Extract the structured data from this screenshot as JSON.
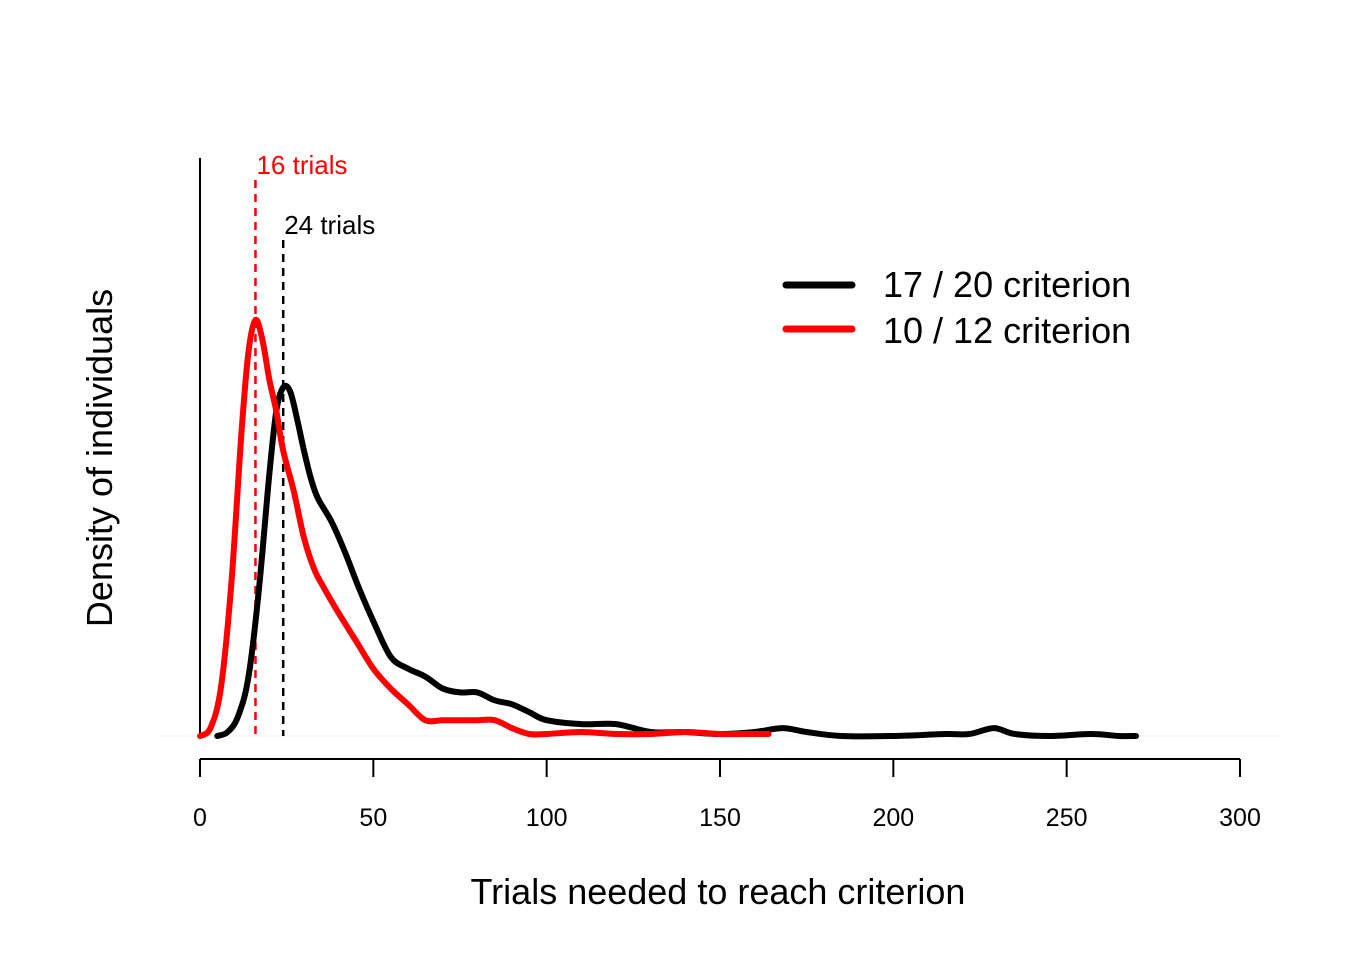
{
  "chart_data": {
    "type": "line",
    "title": "",
    "xlabel": "Trials needed to reach criterion",
    "ylabel": "Density of individuals",
    "xlim": [
      0,
      300
    ],
    "ylim": [
      0,
      1.05
    ],
    "xticks": [
      0,
      50,
      100,
      150,
      200,
      250,
      300
    ],
    "grid": false,
    "legend_position": "top-right",
    "series": [
      {
        "name": "17 / 20 criterion",
        "color": "#000000",
        "x": [
          5,
          8,
          11,
          14,
          17,
          20,
          22,
          24,
          26,
          28,
          30,
          32,
          34,
          38,
          42,
          46,
          50,
          55,
          60,
          65,
          70,
          75,
          80,
          85,
          90,
          95,
          100,
          110,
          120,
          130,
          140,
          150,
          160,
          168,
          175,
          185,
          200,
          215,
          222,
          229,
          235,
          245,
          257,
          265,
          270
        ],
        "values": [
          0.0,
          0.01,
          0.05,
          0.15,
          0.37,
          0.66,
          0.82,
          0.88,
          0.87,
          0.8,
          0.72,
          0.65,
          0.6,
          0.54,
          0.46,
          0.37,
          0.29,
          0.2,
          0.17,
          0.15,
          0.12,
          0.11,
          0.11,
          0.09,
          0.08,
          0.06,
          0.04,
          0.03,
          0.03,
          0.01,
          0.01,
          0.005,
          0.01,
          0.02,
          0.01,
          0.0,
          0.0,
          0.005,
          0.005,
          0.02,
          0.005,
          0.0,
          0.005,
          0.0,
          0.0
        ]
      },
      {
        "name": "10 / 12 criterion",
        "color": "#ff0000",
        "x": [
          0,
          3,
          6,
          9,
          12,
          14,
          16,
          18,
          20,
          22,
          24,
          27,
          30,
          33,
          36,
          40,
          45,
          50,
          55,
          60,
          65,
          70,
          75,
          80,
          85,
          90,
          95,
          100,
          110,
          120,
          130,
          140,
          150,
          157,
          164
        ],
        "values": [
          0.0,
          0.02,
          0.12,
          0.38,
          0.77,
          0.97,
          1.05,
          1.0,
          0.9,
          0.82,
          0.72,
          0.62,
          0.5,
          0.42,
          0.37,
          0.31,
          0.24,
          0.17,
          0.12,
          0.08,
          0.04,
          0.04,
          0.04,
          0.04,
          0.04,
          0.02,
          0.005,
          0.005,
          0.01,
          0.005,
          0.005,
          0.01,
          0.005,
          0.005,
          0.005
        ]
      }
    ],
    "annotations": [
      {
        "label": "16 trials",
        "x": 16,
        "color": "#ff0000"
      },
      {
        "label": "24 trials",
        "x": 24,
        "color": "#000000"
      }
    ]
  }
}
